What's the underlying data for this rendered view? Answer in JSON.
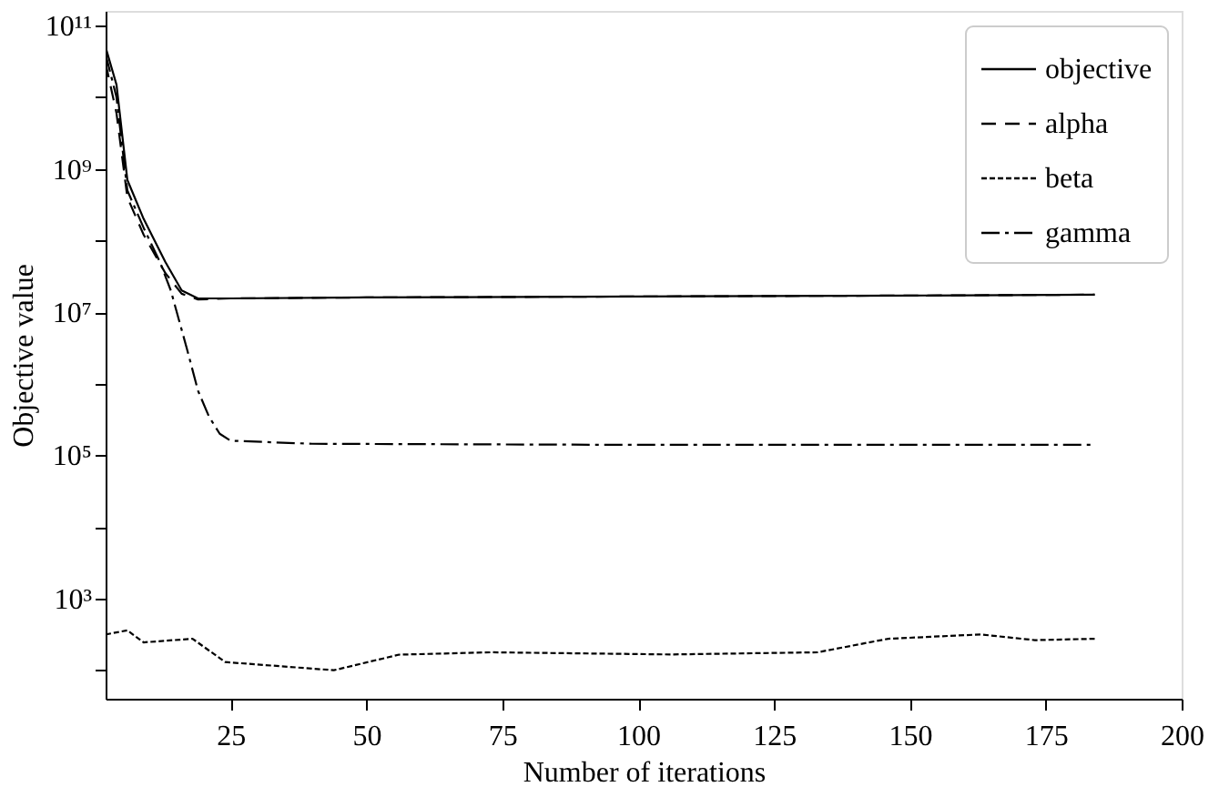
{
  "chart_data": {
    "type": "line",
    "xlabel": "Number of iterations",
    "ylabel": "Objective value",
    "log": "y",
    "xlim": [
      2,
      200
    ],
    "xticks": [
      25,
      50,
      75,
      100,
      125,
      150,
      175,
      200
    ],
    "ylim": [
      40,
      160000000000.0
    ],
    "yticks": [
      {
        "value": 100,
        "label": null
      },
      {
        "value": 1000,
        "label": "10³"
      },
      {
        "value": 10000,
        "label": null
      },
      {
        "value": 100000,
        "label": "10⁵"
      },
      {
        "value": 1000000,
        "label": null
      },
      {
        "value": 10000000,
        "label": "10⁷"
      },
      {
        "value": 100000000,
        "label": null
      },
      {
        "value": 1000000000,
        "label": "10⁹"
      },
      {
        "value": 10000000000,
        "label": null
      },
      {
        "value": 100000000000,
        "label": "10¹¹"
      }
    ],
    "grid": false,
    "legend": "top right",
    "x": [
      2,
      4,
      6,
      9,
      13,
      16,
      19,
      25,
      50,
      100,
      150,
      184
    ],
    "series": [
      {
        "name": "objective",
        "color": "#000000",
        "line_style": "solid",
        "values": [
          50000000000.0,
          15000000000.0,
          700000000.0,
          200000000.0,
          50000000.0,
          20000000.0,
          15500000.0,
          15500000.0,
          16000000.0,
          16500000.0,
          17000000.0,
          17500000.0
        ]
      },
      {
        "name": "alpha",
        "color": "#000000",
        "line_style": "dashed",
        "values": [
          30000000000.0,
          6000000000.0,
          400000000.0,
          120000000.0,
          35000000.0,
          18000000.0,
          15000000.0,
          15500000.0,
          16000000.0,
          16500000.0,
          17000000.0,
          17500000.0
        ]
      },
      {
        "name": "beta",
        "color": "#000000",
        "line_style": "dotted",
        "x": [
          2,
          6,
          9,
          18,
          24,
          44,
          56,
          73,
          106,
          133,
          146,
          163,
          173,
          184
        ],
        "values": [
          316,
          360,
          245,
          275,
          130,
          100,
          165,
          178,
          166,
          178,
          275,
          316,
          263,
          275
        ]
      },
      {
        "name": "gamma",
        "color": "#000000",
        "line_style": "dashdot",
        "x": [
          2,
          4,
          6,
          9,
          12,
          14,
          17,
          19,
          21,
          23,
          25,
          40,
          100,
          184
        ],
        "values": [
          40000000000.0,
          10000000000.0,
          500000000.0,
          150000000.0,
          50000000.0,
          20000000.0,
          3000000.0,
          800000.0,
          350000.0,
          200000.0,
          160000.0,
          145000.0,
          140000.0,
          140000.0
        ]
      }
    ]
  }
}
